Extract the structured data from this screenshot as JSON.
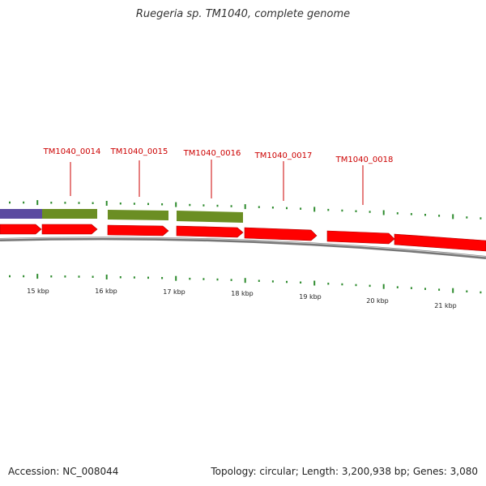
{
  "title": "Ruegeria sp. TM1040, complete genome",
  "footer": {
    "accession": "Accession: NC_008044",
    "summary": "Topology: circular; Length: 3,200,938 bp; Genes: 3,080"
  },
  "colors": {
    "cds_forward": "#ff0000",
    "rna_green": "#6b8e23",
    "feature_purple": "#5b4aa0",
    "backbone": "#888888",
    "tick_green": "#2e8b2e",
    "locus_label": "#cc0000"
  },
  "scale_labels": [
    "15 kbp",
    "16 kbp",
    "17 kbp",
    "18 kbp",
    "19 kbp",
    "20 kbp",
    "21 kbp"
  ],
  "loci": [
    {
      "name": "TM1040_0014"
    },
    {
      "name": "TM1040_0015"
    },
    {
      "name": "TM1040_0016"
    },
    {
      "name": "TM1040_0017"
    },
    {
      "name": "TM1040_0018"
    }
  ]
}
